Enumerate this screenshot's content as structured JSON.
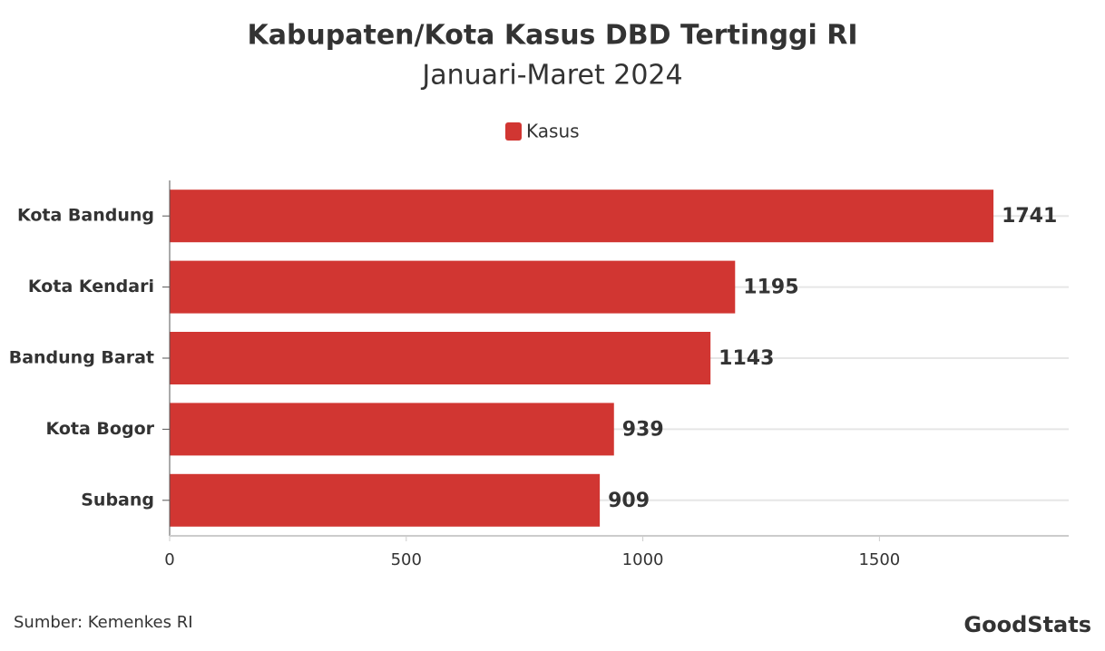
{
  "chart_data": {
    "type": "bar",
    "orientation": "horizontal",
    "title": "Kabupaten/Kota Kasus DBD Tertinggi RI",
    "subtitle": "Januari-Maret 2024",
    "categories": [
      "Kota Bandung",
      "Kota Kendari",
      "Bandung Barat",
      "Kota Bogor",
      "Subang"
    ],
    "series": [
      {
        "name": "Kasus",
        "color": "#d13632",
        "values": [
          1741,
          1195,
          1143,
          939,
          909
        ]
      }
    ],
    "xlim": [
      0,
      1900
    ],
    "xticks": [
      0,
      500,
      1000,
      1500
    ],
    "grid": true,
    "legend": "top",
    "source": "Sumber: Kemenkes RI",
    "logo": "GoodStats"
  }
}
